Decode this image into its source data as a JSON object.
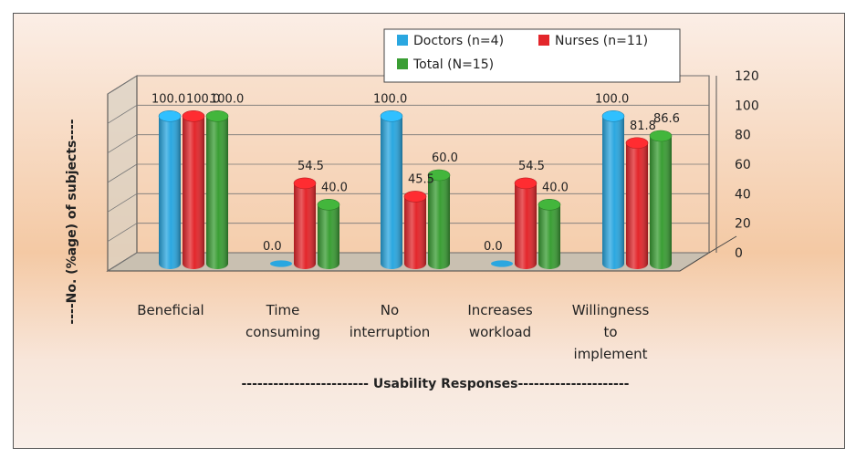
{
  "chart_data": {
    "type": "bar",
    "categories": [
      [
        "Beneficial"
      ],
      [
        "Time",
        "consuming"
      ],
      [
        "No",
        "interruption"
      ],
      [
        "Increases",
        "workload"
      ],
      [
        "Willingness",
        "to",
        "implement"
      ]
    ],
    "series": [
      {
        "name": "Doctors (n=4)",
        "color": "#2aa7e0",
        "values": [
          100.0,
          0.0,
          100.0,
          0.0,
          100.0
        ],
        "labels": [
          "100.0",
          "0.0",
          "100.0",
          "0.0",
          "100.0"
        ]
      },
      {
        "name": "Nurses (n=11)",
        "color": "#e3262b",
        "values": [
          100.0,
          54.5,
          45.5,
          54.5,
          81.8
        ],
        "labels": [
          "100.0",
          "54.5",
          "45.5",
          "54.5",
          "81.8"
        ]
      },
      {
        "name": "Total (N=15)",
        "color": "#3a9e34",
        "values": [
          100.0,
          40.0,
          60.0,
          40.0,
          86.6
        ],
        "labels": [
          "100.0",
          "40.0",
          "60.0",
          "40.0",
          "86.6"
        ]
      }
    ],
    "xlabel": "------------------------ Usability Responses---------------------",
    "ylabel": "----No. (%age) of subjects----",
    "ylim": [
      0,
      120
    ],
    "yticks": [
      "0",
      "20",
      "40",
      "60",
      "80",
      "100",
      "120"
    ],
    "grid": true,
    "legend_position": "top-right"
  }
}
